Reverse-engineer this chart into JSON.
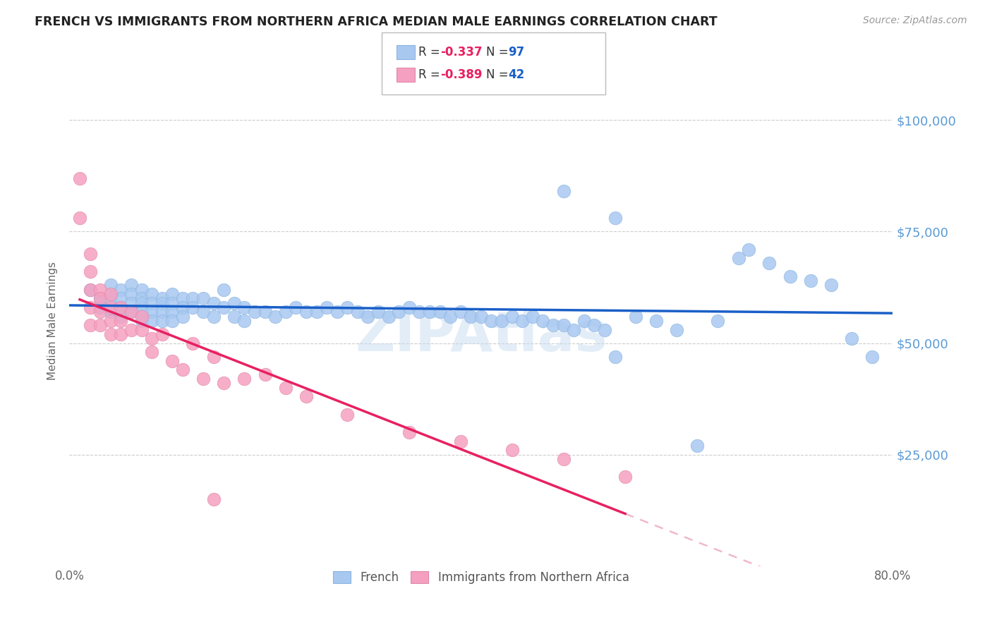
{
  "title": "FRENCH VS IMMIGRANTS FROM NORTHERN AFRICA MEDIAN MALE EARNINGS CORRELATION CHART",
  "source": "Source: ZipAtlas.com",
  "ylabel": "Median Male Earnings",
  "y_tick_labels": [
    "$100,000",
    "$75,000",
    "$50,000",
    "$25,000"
  ],
  "y_tick_values": [
    100000,
    75000,
    50000,
    25000
  ],
  "xlim": [
    0.0,
    0.8
  ],
  "ylim": [
    0,
    110000
  ],
  "watermark": "ZIPAtlas",
  "legend_r1": "-0.337",
  "legend_n1": "97",
  "legend_r2": "-0.389",
  "legend_n2": "42",
  "blue_color": "#a8c8f0",
  "pink_color": "#f5a0c0",
  "blue_line_color": "#1a5fc8",
  "pink_line_color": "#e82060",
  "pink_dash_color": "#f0b8cc",
  "title_color": "#222222",
  "right_label_color": "#5b9bd5",
  "background_color": "#ffffff",
  "blue_scatter_x": [
    0.02,
    0.03,
    0.03,
    0.04,
    0.04,
    0.04,
    0.05,
    0.05,
    0.05,
    0.05,
    0.06,
    0.06,
    0.06,
    0.06,
    0.07,
    0.07,
    0.07,
    0.07,
    0.07,
    0.08,
    0.08,
    0.08,
    0.08,
    0.09,
    0.09,
    0.09,
    0.09,
    0.1,
    0.1,
    0.1,
    0.1,
    0.11,
    0.11,
    0.11,
    0.12,
    0.12,
    0.13,
    0.13,
    0.14,
    0.14,
    0.15,
    0.15,
    0.16,
    0.16,
    0.17,
    0.17,
    0.18,
    0.19,
    0.2,
    0.21,
    0.22,
    0.23,
    0.24,
    0.25,
    0.26,
    0.27,
    0.28,
    0.29,
    0.3,
    0.31,
    0.32,
    0.33,
    0.34,
    0.35,
    0.36,
    0.37,
    0.38,
    0.39,
    0.4,
    0.41,
    0.42,
    0.43,
    0.44,
    0.45,
    0.46,
    0.47,
    0.48,
    0.49,
    0.5,
    0.51,
    0.52,
    0.53,
    0.55,
    0.57,
    0.59,
    0.61,
    0.63,
    0.65,
    0.66,
    0.68,
    0.7,
    0.72,
    0.74,
    0.76,
    0.78,
    0.48,
    0.53
  ],
  "blue_scatter_y": [
    62000,
    60000,
    58000,
    63000,
    60000,
    57000,
    62000,
    60000,
    58000,
    56000,
    63000,
    61000,
    59000,
    57000,
    62000,
    60000,
    59000,
    57000,
    55000,
    61000,
    59000,
    57000,
    55000,
    60000,
    59000,
    57000,
    55000,
    61000,
    59000,
    57000,
    55000,
    60000,
    58000,
    56000,
    60000,
    58000,
    60000,
    57000,
    59000,
    56000,
    62000,
    58000,
    59000,
    56000,
    58000,
    55000,
    57000,
    57000,
    56000,
    57000,
    58000,
    57000,
    57000,
    58000,
    57000,
    58000,
    57000,
    56000,
    57000,
    56000,
    57000,
    58000,
    57000,
    57000,
    57000,
    56000,
    57000,
    56000,
    56000,
    55000,
    55000,
    56000,
    55000,
    56000,
    55000,
    54000,
    54000,
    53000,
    55000,
    54000,
    53000,
    47000,
    56000,
    55000,
    53000,
    27000,
    55000,
    69000,
    71000,
    68000,
    65000,
    64000,
    63000,
    51000,
    47000,
    84000,
    78000
  ],
  "pink_scatter_x": [
    0.01,
    0.01,
    0.02,
    0.02,
    0.02,
    0.02,
    0.02,
    0.03,
    0.03,
    0.03,
    0.03,
    0.04,
    0.04,
    0.04,
    0.04,
    0.05,
    0.05,
    0.05,
    0.06,
    0.06,
    0.07,
    0.07,
    0.08,
    0.08,
    0.09,
    0.1,
    0.11,
    0.12,
    0.13,
    0.14,
    0.15,
    0.17,
    0.19,
    0.21,
    0.23,
    0.27,
    0.33,
    0.38,
    0.43,
    0.48,
    0.54,
    0.14
  ],
  "pink_scatter_y": [
    87000,
    78000,
    70000,
    66000,
    62000,
    58000,
    54000,
    62000,
    60000,
    57000,
    54000,
    61000,
    58000,
    55000,
    52000,
    58000,
    55000,
    52000,
    57000,
    53000,
    56000,
    53000,
    51000,
    48000,
    52000,
    46000,
    44000,
    50000,
    42000,
    47000,
    41000,
    42000,
    43000,
    40000,
    38000,
    34000,
    30000,
    28000,
    26000,
    24000,
    20000,
    15000
  ]
}
